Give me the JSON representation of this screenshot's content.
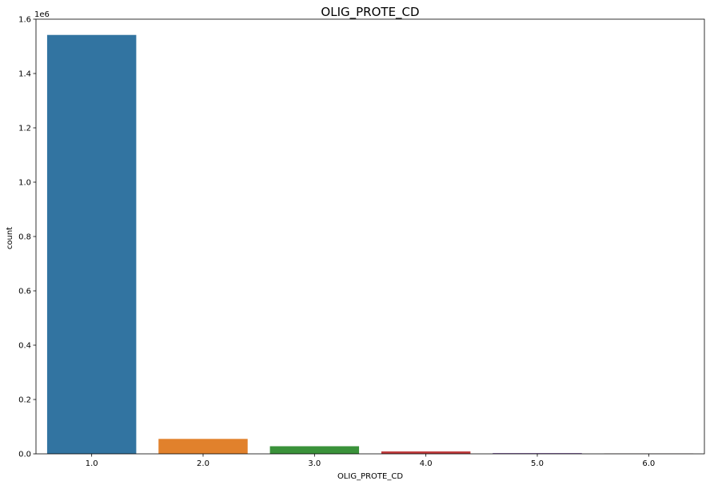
{
  "chart_data": {
    "type": "bar",
    "title": "OLIG_PROTE_CD",
    "xlabel": "OLIG_PROTE_CD",
    "ylabel": "count",
    "y_scale_label": "1e6",
    "categories": [
      "1.0",
      "2.0",
      "3.0",
      "4.0",
      "5.0",
      "6.0"
    ],
    "values": [
      1542000,
      55000,
      28000,
      9000,
      3000,
      1000
    ],
    "ylim": [
      0,
      1600000
    ],
    "y_ticks": [
      0.0,
      0.2,
      0.4,
      0.6,
      0.8,
      1.0,
      1.2,
      1.4,
      1.6
    ],
    "y_tick_labels": [
      "0.0",
      "0.2",
      "0.4",
      "0.6",
      "0.8",
      "1.0",
      "1.2",
      "1.4",
      "1.6"
    ],
    "colors": [
      "#3274a1",
      "#e1812c",
      "#3a923a",
      "#c03d3e",
      "#9372b2",
      "#845b53"
    ],
    "grid": false,
    "legend": "none"
  }
}
